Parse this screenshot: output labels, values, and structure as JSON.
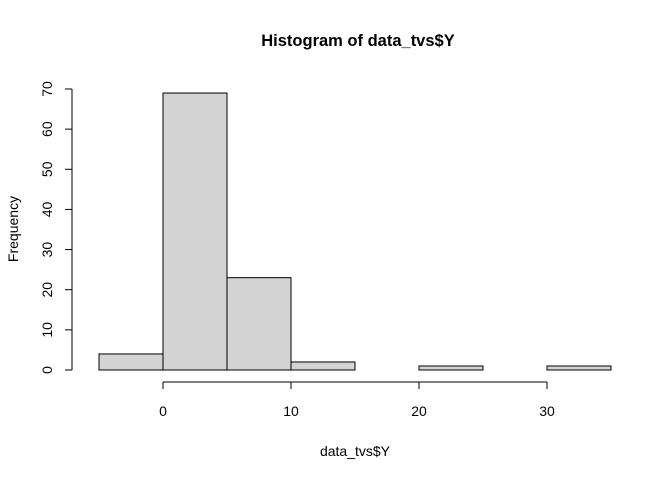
{
  "chart_data": {
    "type": "bar",
    "title": "Histogram of data_tvs$Y",
    "xlabel": "data_tvs$Y",
    "ylabel": "Frequency",
    "bins": [
      {
        "from": -5,
        "to": 0,
        "count": 4
      },
      {
        "from": 0,
        "to": 5,
        "count": 69
      },
      {
        "from": 5,
        "to": 10,
        "count": 23
      },
      {
        "from": 10,
        "to": 15,
        "count": 2
      },
      {
        "from": 15,
        "to": 20,
        "count": 0
      },
      {
        "from": 20,
        "to": 25,
        "count": 1
      },
      {
        "from": 25,
        "to": 30,
        "count": 0
      },
      {
        "from": 30,
        "to": 35,
        "count": 1
      }
    ],
    "x_ticks": [
      0,
      10,
      20,
      30
    ],
    "y_ticks": [
      0,
      10,
      20,
      30,
      40,
      50,
      60,
      70
    ],
    "xlim": [
      -5,
      35
    ],
    "ylim": [
      0,
      70
    ],
    "bar_color": "#d3d3d3",
    "grid": false,
    "legend": "none"
  }
}
